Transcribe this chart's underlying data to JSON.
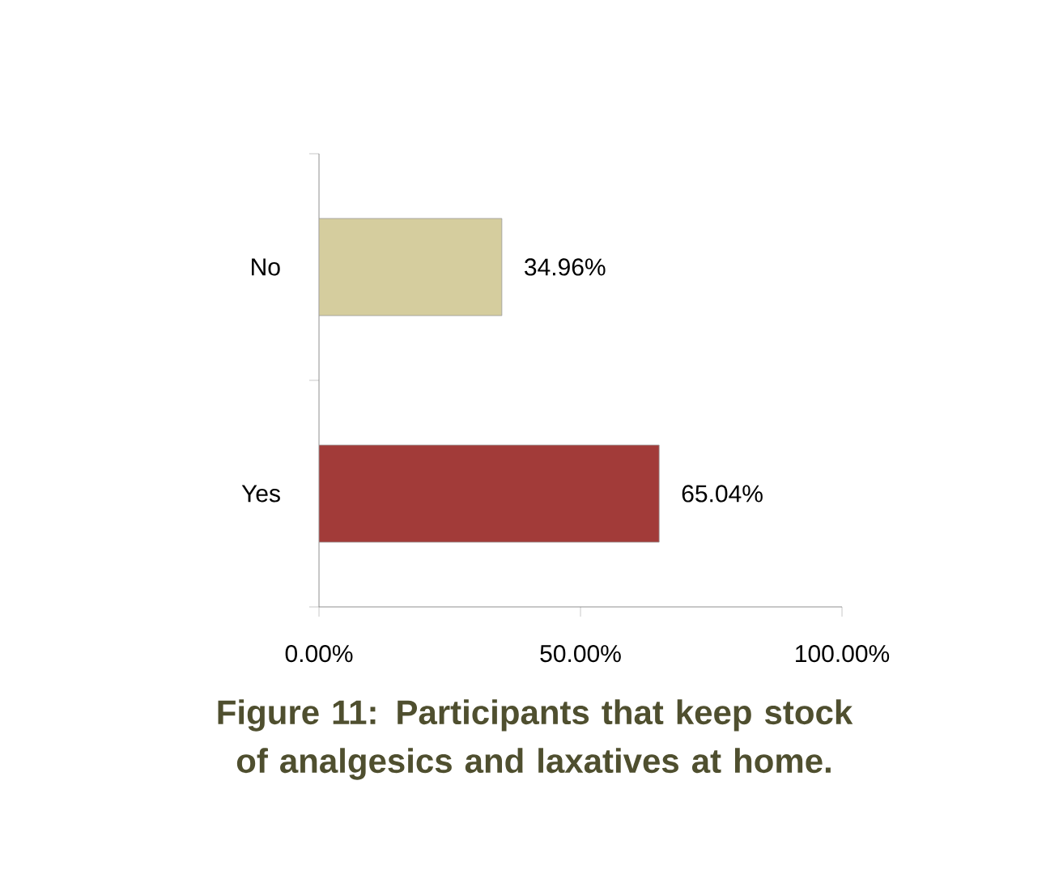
{
  "chart_data": {
    "type": "bar",
    "orientation": "horizontal",
    "title": "Figure 11: Participants that keep stock of analgesics and laxatives at home.",
    "categories": [
      "No",
      "Yes"
    ],
    "values": [
      34.96,
      65.04
    ],
    "colors": [
      "#d5cd9e",
      "#a23b39"
    ],
    "value_labels": [
      "34.96%",
      "65.04%"
    ],
    "xlim": [
      0,
      100
    ],
    "xticks": [
      {
        "value": 0,
        "label": "0.00%"
      },
      {
        "value": 50,
        "label": "50.00%"
      },
      {
        "value": 100,
        "label": "100.00%"
      }
    ],
    "grid": false
  }
}
